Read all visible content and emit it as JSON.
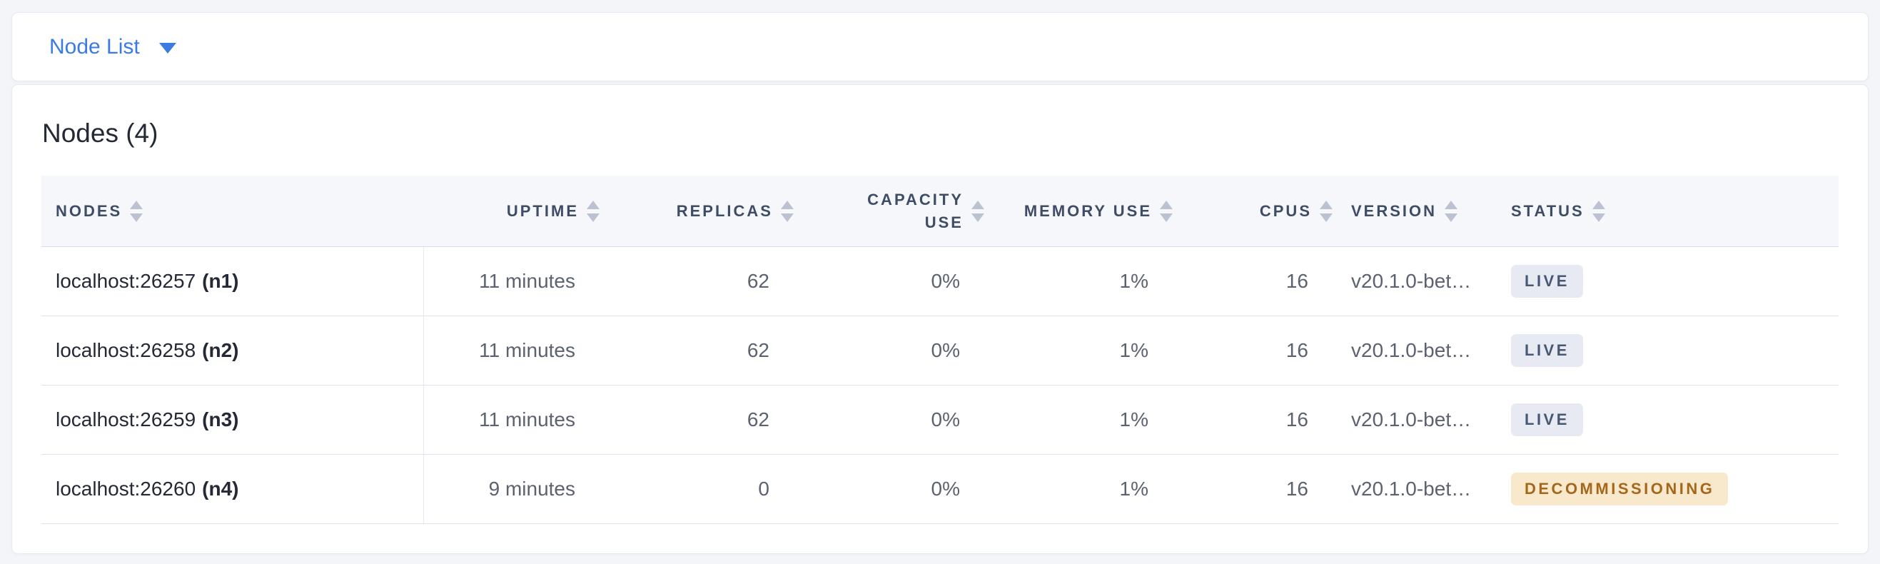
{
  "view_selector_bar": {
    "label": "Node List"
  },
  "nodes_card": {
    "title": "Nodes (4)",
    "table": {
      "columns": [
        {
          "label": "NODES",
          "align": "left",
          "sortable": true
        },
        {
          "label": "UPTIME",
          "align": "right",
          "sortable": true
        },
        {
          "label": "REPLICAS",
          "align": "right",
          "sortable": true
        },
        {
          "label": "CAPACITY USE",
          "align": "right",
          "sortable": true
        },
        {
          "label": "MEMORY USE",
          "align": "right",
          "sortable": true
        },
        {
          "label": "CPUS",
          "align": "right",
          "sortable": true
        },
        {
          "label": "VERSION",
          "align": "left",
          "sortable": true
        },
        {
          "label": "STATUS",
          "align": "left",
          "sortable": true
        }
      ],
      "rows": [
        {
          "address": "localhost:26257",
          "node_id": "(n1)",
          "uptime": "11 minutes",
          "replicas": "62",
          "capacity_use": "0%",
          "memory_use": "1%",
          "cpus": "16",
          "version": "v20.1.0-bet…",
          "status": "LIVE",
          "status_type": "live"
        },
        {
          "address": "localhost:26258",
          "node_id": "(n2)",
          "uptime": "11 minutes",
          "replicas": "62",
          "capacity_use": "0%",
          "memory_use": "1%",
          "cpus": "16",
          "version": "v20.1.0-bet…",
          "status": "LIVE",
          "status_type": "live"
        },
        {
          "address": "localhost:26259",
          "node_id": "(n3)",
          "uptime": "11 minutes",
          "replicas": "62",
          "capacity_use": "0%",
          "memory_use": "1%",
          "cpus": "16",
          "version": "v20.1.0-bet…",
          "status": "LIVE",
          "status_type": "live"
        },
        {
          "address": "localhost:26260",
          "node_id": "(n4)",
          "uptime": "9 minutes",
          "replicas": "0",
          "capacity_use": "0%",
          "memory_use": "1%",
          "cpus": "16",
          "version": "v20.1.0-bet…",
          "status": "DECOMMISSIONING",
          "status_type": "decommissioning"
        }
      ]
    }
  },
  "colors": {
    "accent_blue": "#3b7be2",
    "live_badge_bg": "#e7eaf3",
    "live_badge_text": "#475872",
    "decommissioning_badge_bg": "#f9e9cc",
    "decommissioning_badge_text": "#a4671c"
  }
}
